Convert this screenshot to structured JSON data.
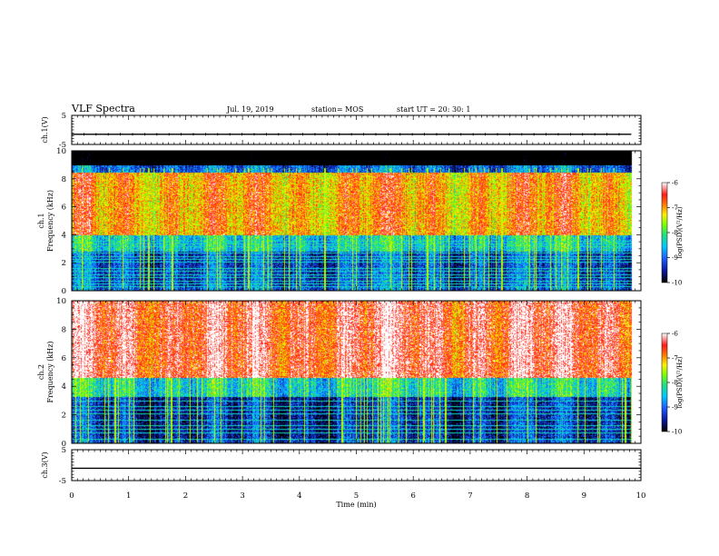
{
  "header": {
    "title": "VLF Spectra",
    "date": "Jul. 19, 2019",
    "station": "station= MOS",
    "start": "start UT =   20: 30: 1"
  },
  "colors": {
    "palette": [
      "#000000",
      "#0a1aa0",
      "#1e5cff",
      "#00c8ff",
      "#22e07a",
      "#7cff00",
      "#ffee00",
      "#ff7a00",
      "#ff1a1a",
      "#ffffff"
    ]
  },
  "chart_data": [
    {
      "type": "line",
      "panel": "ch1-waveform",
      "ylabel": "ch.1(V)",
      "yticks": [
        "5",
        "-5"
      ],
      "ylim": [
        -5,
        5
      ],
      "xlim": [
        0,
        10
      ],
      "series": [
        {
          "x": [
            0,
            9.83
          ],
          "y": [
            -1.5,
            -1.5
          ]
        }
      ]
    },
    {
      "type": "heatmap",
      "panel": "ch1-spectrogram",
      "ylabel": "ch.1 Frequency (kHz)",
      "yticks": [
        "0",
        "2",
        "4",
        "6",
        "8",
        "10"
      ],
      "ylim": [
        0,
        10
      ],
      "xlim": [
        0,
        10
      ],
      "data_xmax": 9.83,
      "colorbar": {
        "label": "log(PSD)(V²/Hz)",
        "ticks": [
          "-6",
          "-7",
          "-8",
          "-9",
          "-10"
        ],
        "range": [
          -10,
          -6
        ]
      },
      "bands": [
        {
          "f": [
            0,
            0.3
          ],
          "level": -9.0
        },
        {
          "f": [
            0.3,
            2.8
          ],
          "level": -9.2
        },
        {
          "f": [
            2.8,
            4.0
          ],
          "level": -8.4
        },
        {
          "f": [
            4.0,
            8.5
          ],
          "level": -7.0
        },
        {
          "f": [
            8.5,
            9.0
          ],
          "level": -9.0
        },
        {
          "f": [
            9.0,
            10
          ],
          "level": -11
        }
      ],
      "lines_khz": [
        0.3,
        0.55,
        0.7,
        1.0,
        1.2,
        1.45,
        1.65,
        2.05,
        2.25,
        2.45,
        2.7,
        3.15,
        3.35,
        3.55
      ]
    },
    {
      "type": "heatmap",
      "panel": "ch2-spectrogram",
      "ylabel": "ch.2 Frequency (kHz)",
      "yticks": [
        "0",
        "2",
        "4",
        "6",
        "8",
        "10"
      ],
      "ylim": [
        0,
        10
      ],
      "xlim": [
        0,
        10
      ],
      "data_xmax": 9.83,
      "colorbar": {
        "label": "log(PSD)(V²/Hz)",
        "ticks": [
          "-6",
          "-7",
          "-8",
          "-9",
          "-10"
        ],
        "range": [
          -10,
          -6
        ]
      },
      "bands": [
        {
          "f": [
            0,
            0.3
          ],
          "level": -9.2
        },
        {
          "f": [
            0.3,
            3.3
          ],
          "level": -9.4
        },
        {
          "f": [
            3.3,
            4.6
          ],
          "level": -8.3
        },
        {
          "f": [
            4.6,
            10
          ],
          "level": -6.4
        }
      ],
      "lines_khz": [
        0.35,
        0.75,
        1.0,
        1.3,
        1.65,
        2.1,
        2.35,
        2.6,
        3.0
      ]
    },
    {
      "type": "line",
      "panel": "ch3-waveform",
      "ylabel": "ch.3(V)",
      "yticks": [
        "5",
        "-5"
      ],
      "ylim": [
        -5,
        5
      ],
      "xlim": [
        0,
        10
      ],
      "series": [
        {
          "x": [
            0,
            10
          ],
          "y": [
            -1.0,
            -1.0
          ]
        }
      ]
    }
  ],
  "xaxis": {
    "label": "Time (min)",
    "ticks": [
      "0",
      "1",
      "2",
      "3",
      "4",
      "5",
      "6",
      "7",
      "8",
      "9",
      "10"
    ]
  }
}
